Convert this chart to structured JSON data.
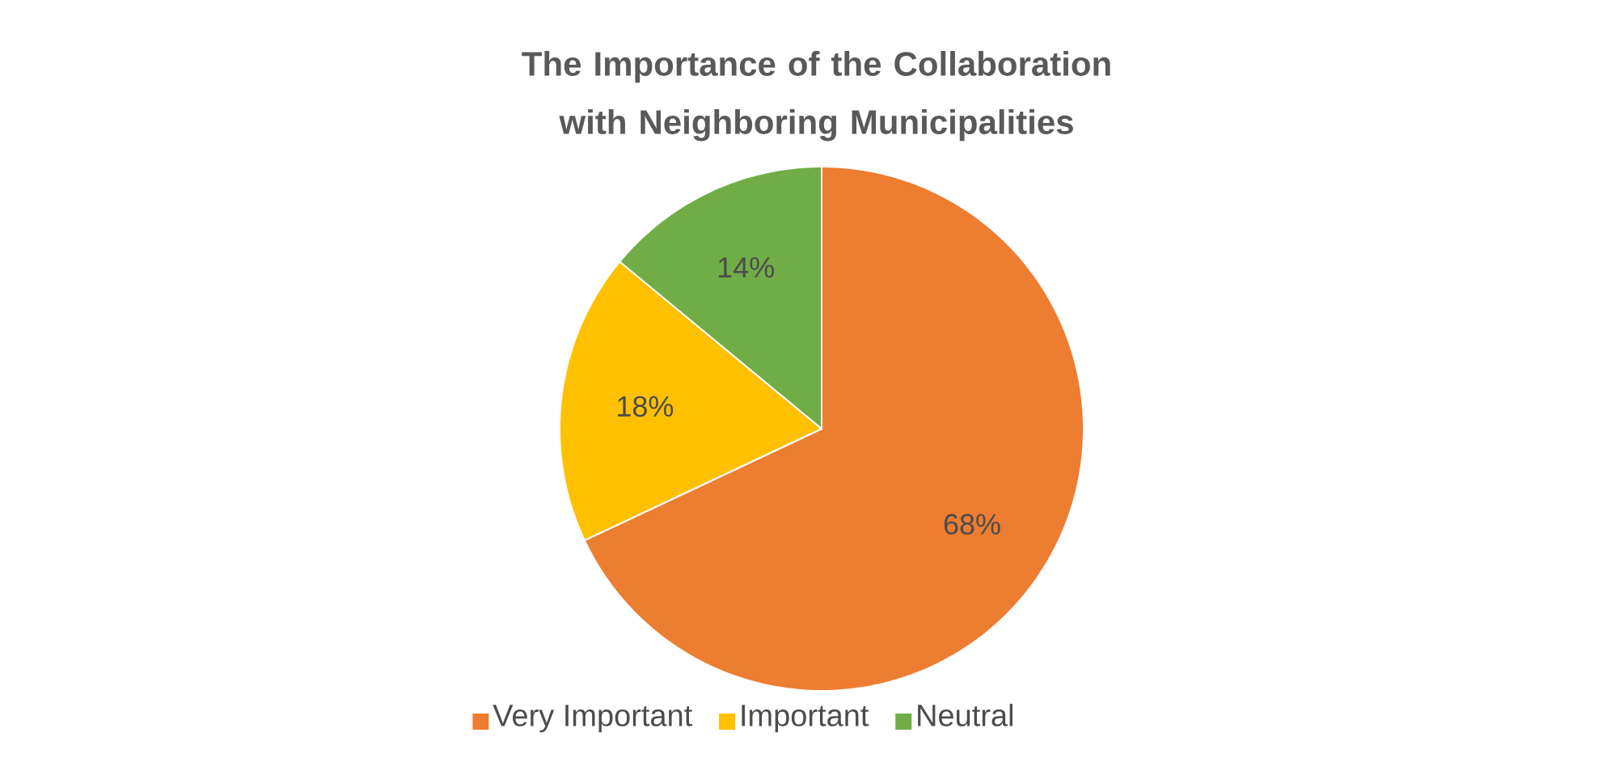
{
  "chart_data": {
    "type": "pie",
    "title": "The Importance of the Collaboration with Neighboring Municipalities",
    "categories": [
      "Very Important",
      "Important",
      "Neutral"
    ],
    "values": [
      68,
      18,
      14
    ],
    "value_labels": [
      "68%",
      "18%",
      "14%"
    ],
    "colors": [
      "#ED7D31",
      "#FFC000",
      "#70AD47"
    ],
    "legend": "bottom"
  }
}
